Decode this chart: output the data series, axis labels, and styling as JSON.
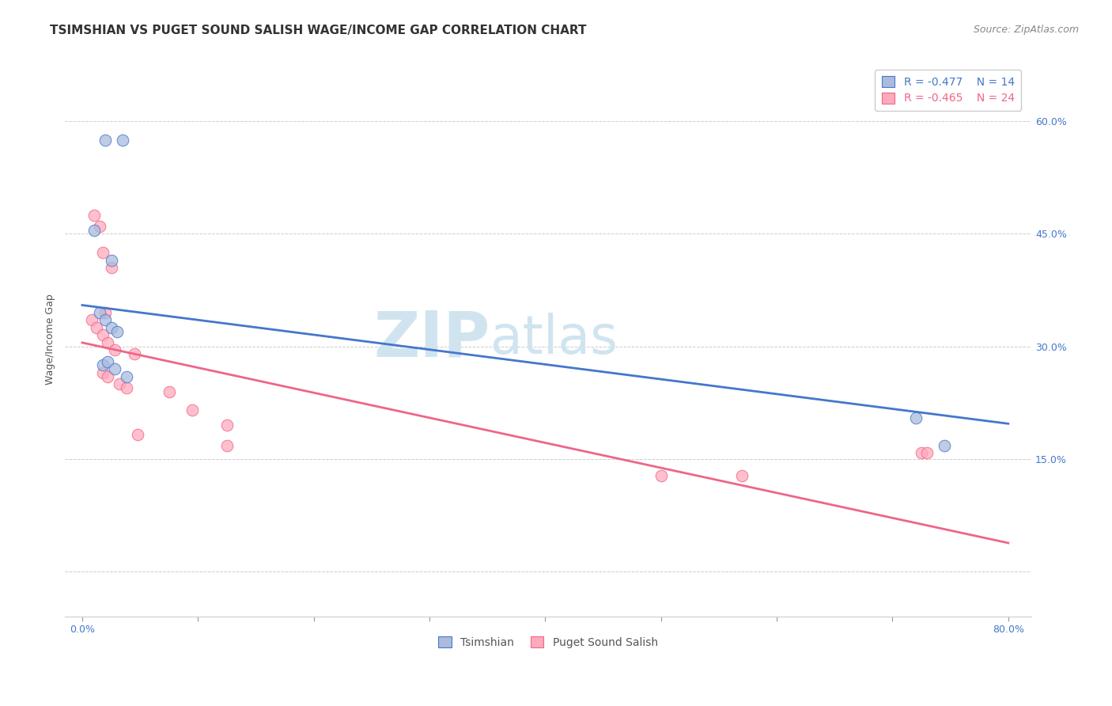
{
  "title": "TSIMSHIAN VS PUGET SOUND SALISH WAGE/INCOME GAP CORRELATION CHART",
  "source": "Source: ZipAtlas.com",
  "ylabel": "Wage/Income Gap",
  "xlabel_ticks": [
    0.0,
    0.1,
    0.2,
    0.3,
    0.4,
    0.5,
    0.6,
    0.7,
    0.8
  ],
  "xlabel_labels": [
    "0.0%",
    "",
    "",
    "",
    "",
    "",
    "",
    "",
    "80.0%"
  ],
  "ylabel_ticks": [
    0.0,
    0.15,
    0.3,
    0.45,
    0.6
  ],
  "ylabel_labels": [
    "",
    "15.0%",
    "30.0%",
    "45.0%",
    "60.0%"
  ],
  "xlim": [
    -0.015,
    0.82
  ],
  "ylim": [
    -0.06,
    0.68
  ],
  "blue_label": "Tsimshian",
  "pink_label": "Puget Sound Salish",
  "blue_R": "-0.477",
  "blue_N": "14",
  "pink_R": "-0.465",
  "pink_N": "24",
  "blue_scatter_x": [
    0.02,
    0.035,
    0.01,
    0.025,
    0.015,
    0.02,
    0.025,
    0.03,
    0.018,
    0.022,
    0.028,
    0.038,
    0.72,
    0.745
  ],
  "blue_scatter_y": [
    0.575,
    0.575,
    0.455,
    0.415,
    0.345,
    0.335,
    0.325,
    0.32,
    0.275,
    0.28,
    0.27,
    0.26,
    0.205,
    0.168
  ],
  "pink_scatter_x": [
    0.01,
    0.015,
    0.018,
    0.025,
    0.02,
    0.008,
    0.012,
    0.018,
    0.022,
    0.028,
    0.018,
    0.022,
    0.032,
    0.038,
    0.045,
    0.075,
    0.095,
    0.125,
    0.048,
    0.125,
    0.5,
    0.57,
    0.725,
    0.73
  ],
  "pink_scatter_y": [
    0.475,
    0.46,
    0.425,
    0.405,
    0.345,
    0.335,
    0.325,
    0.315,
    0.305,
    0.295,
    0.265,
    0.26,
    0.25,
    0.245,
    0.29,
    0.24,
    0.215,
    0.195,
    0.183,
    0.168,
    0.128,
    0.128,
    0.158,
    0.158
  ],
  "blue_line_x": [
    0.0,
    0.8
  ],
  "blue_line_y": [
    0.355,
    0.197
  ],
  "pink_line_x": [
    0.0,
    0.8
  ],
  "pink_line_y": [
    0.305,
    0.038
  ],
  "bg_color": "#ffffff",
  "scatter_size": 110,
  "blue_color": "#aabbdd",
  "pink_color": "#ffaabb",
  "blue_line_color": "#4477cc",
  "pink_line_color": "#ee6688",
  "watermark_zip": "ZIP",
  "watermark_atlas": "atlas",
  "watermark_color": "#d0e4f0",
  "title_fontsize": 11,
  "axis_label_fontsize": 9,
  "tick_fontsize": 9,
  "legend_fontsize": 10,
  "source_fontsize": 9
}
